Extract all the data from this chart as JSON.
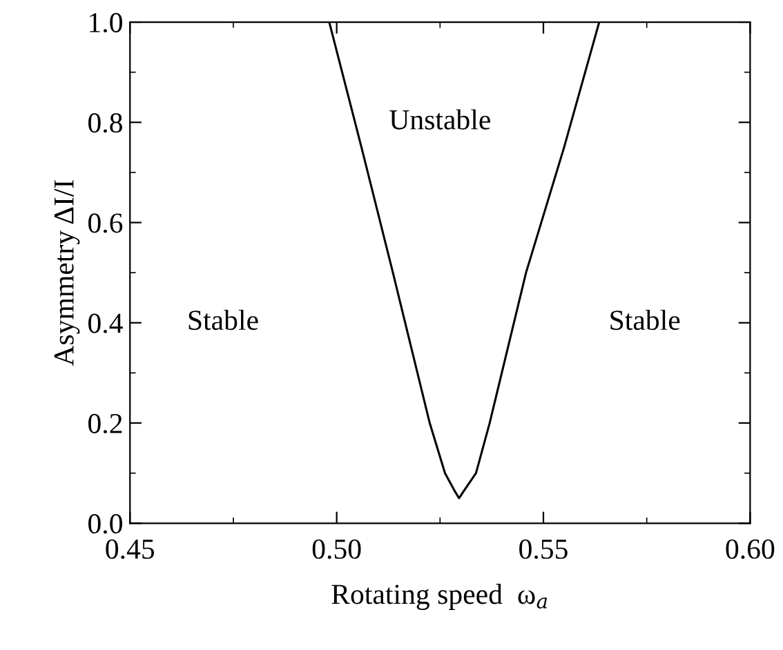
{
  "chart_data": {
    "type": "line",
    "xlabel": "Rotating speed  ω$_{a}$",
    "ylabel": "Asymmetry ΔI/I",
    "x": [
      0.4982,
      0.506,
      0.5136,
      0.5225,
      0.5262,
      0.5285,
      0.5296,
      0.5308,
      0.5337,
      0.537,
      0.5458,
      0.555,
      0.5635
    ],
    "series": [
      {
        "color": "#000000",
        "values": [
          1.0,
          0.75,
          0.5,
          0.2,
          0.1,
          0.065,
          0.05,
          0.065,
          0.1,
          0.2,
          0.5,
          0.75,
          1.0
        ]
      }
    ],
    "xlim": [
      0.45,
      0.6
    ],
    "ylim": [
      0.0,
      1.0
    ],
    "xticks": [
      {
        "value": 0.45,
        "label": "0.45"
      },
      {
        "value": 0.5,
        "label": "0.50"
      },
      {
        "value": 0.55,
        "label": "0.55"
      },
      {
        "value": 0.6,
        "label": "0.60"
      }
    ],
    "yticks": [
      {
        "value": 0.0,
        "label": "0.0"
      },
      0.2,
      0.4,
      0.6,
      0.8,
      {
        "value": 1.0,
        "label": "1.0"
      }
    ],
    "annotations": [
      "Unstable",
      "Stable",
      "Stable"
    ],
    "grid": false,
    "legend": false,
    "marker": "none",
    "line_style": "solid"
  }
}
